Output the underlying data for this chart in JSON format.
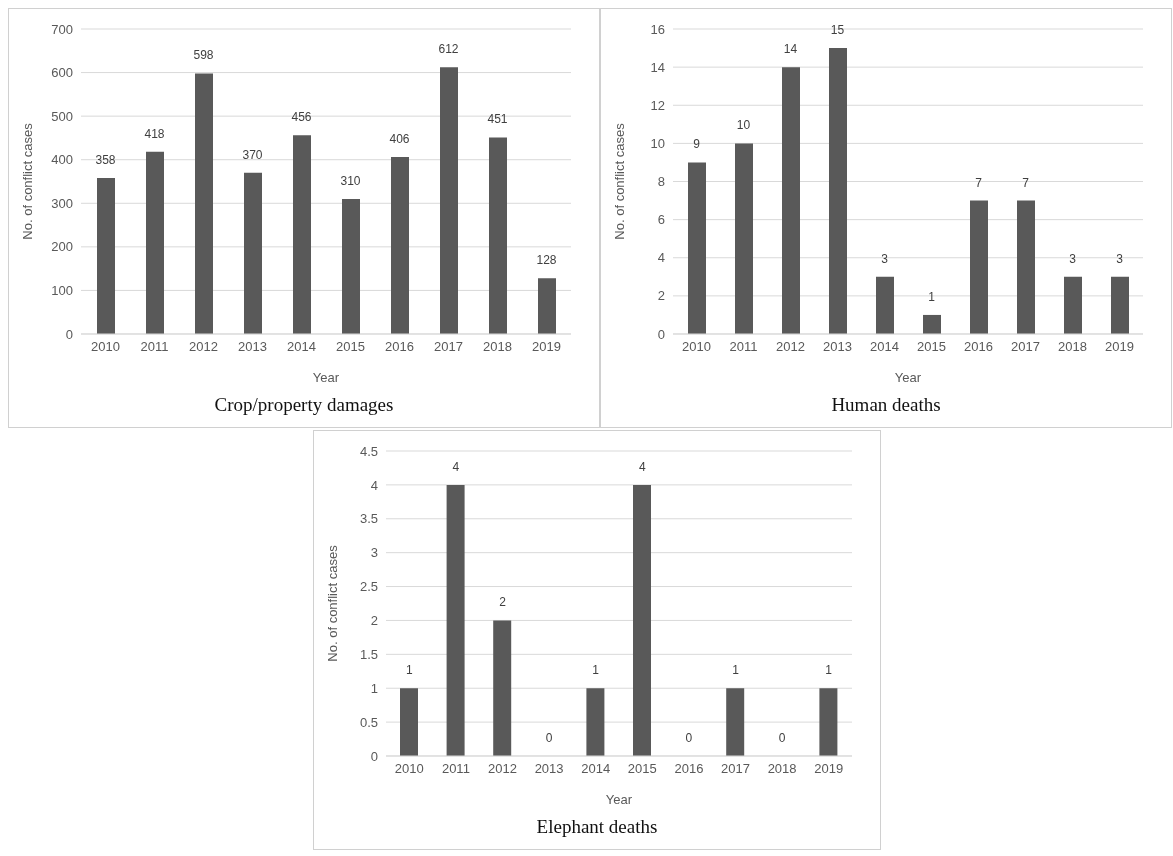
{
  "chart_data": [
    {
      "type": "bar",
      "title": "Crop/property damages",
      "xlabel": "Year",
      "ylabel": "No. of conflict cases",
      "categories": [
        "2010",
        "2011",
        "2012",
        "2013",
        "2014",
        "2015",
        "2016",
        "2017",
        "2018",
        "2019"
      ],
      "values": [
        358,
        418,
        598,
        370,
        456,
        310,
        406,
        612,
        451,
        128
      ],
      "color": "#595959",
      "ylim": [
        0,
        700
      ],
      "yticks": [
        0,
        100,
        200,
        300,
        400,
        500,
        600,
        700
      ],
      "grid": "y",
      "data_labels": true
    },
    {
      "type": "bar",
      "title": "Human deaths",
      "xlabel": "Year",
      "ylabel": "No. of conflict cases",
      "categories": [
        "2010",
        "2011",
        "2012",
        "2013",
        "2014",
        "2015",
        "2016",
        "2017",
        "2018",
        "2019"
      ],
      "values": [
        9,
        10,
        14,
        15,
        3,
        1,
        7,
        7,
        3,
        3
      ],
      "color": "#595959",
      "ylim": [
        0,
        16
      ],
      "yticks": [
        0,
        2,
        4,
        6,
        8,
        10,
        12,
        14,
        16
      ],
      "grid": "y",
      "data_labels": true
    },
    {
      "type": "bar",
      "title": "Elephant deaths",
      "xlabel": "Year",
      "ylabel": "No. of conflict cases",
      "categories": [
        "2010",
        "2011",
        "2012",
        "2013",
        "2014",
        "2015",
        "2016",
        "2017",
        "2018",
        "2019"
      ],
      "values": [
        1,
        4,
        2,
        0,
        1,
        4,
        0,
        1,
        0,
        1
      ],
      "color": "#595959",
      "ylim": [
        0,
        4.5
      ],
      "yticks": [
        0,
        0.5,
        1,
        1.5,
        2,
        2.5,
        3,
        3.5,
        4,
        4.5
      ],
      "grid": "y",
      "data_labels": true
    }
  ]
}
